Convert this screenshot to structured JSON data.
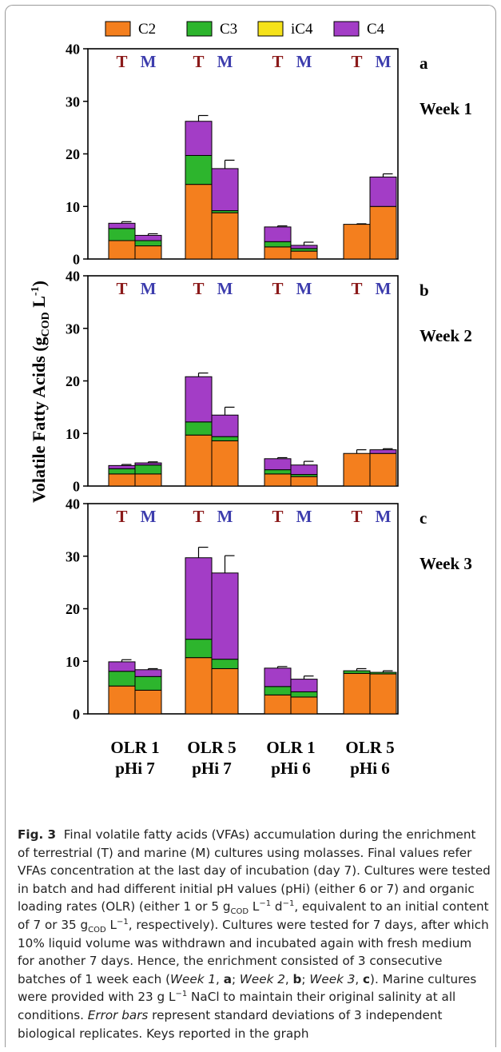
{
  "caption": {
    "label": "Fig. 3",
    "text_html": "Final volatile fatty acids (VFAs) accumulation during the enrichment of terrestrial (T) and marine (M) cultures using molasses. Final values refer VFAs concentration at the last day of incubation (day 7). Cultures were tested in batch and had different initial pH values (pHi) (either 6 or 7) and organic loading rates (OLR) (either 1 or 5 g<sub>COD</sub> L<sup>−1</sup> d<sup>−1</sup>, equivalent to an initial content of 7 or 35 g<sub>COD</sub> L<sup>−1</sup>, respectively). Cultures were tested for 7 days, after which 10% liquid volume was withdrawn and incubated again with fresh medium for another 7 days. Hence, the enrichment consisted of 3 consecutive batches of 1 week each (<i>Week 1</i>, <b>a</b>; <i>Week 2</i>, <b>b</b>; <i>Week 3</i>, <b>c</b>). Marine cultures were provided with 23 g L<sup>−1</sup> NaCl to maintain their original salinity at all conditions. <i>Error bars</i> represent standard deviations of 3 independent biological replicates. Keys reported in the graph"
  },
  "chart_data": {
    "type": "bar",
    "stacked": true,
    "ylabel_main": "Volatile Fatty Acids (g",
    "ylabel_sub": "COD",
    "ylabel_tail": " L",
    "ylabel_sup": "-1",
    "ylabel_close": ")",
    "ylim": [
      0,
      40
    ],
    "yticks": [
      0,
      10,
      20,
      30,
      40
    ],
    "colors": {
      "C2": "#f47f1e",
      "C3": "#2db52d",
      "iC4": "#f5e21a",
      "C4": "#a33dc6",
      "T": "#8b1a1a",
      "M": "#3d3dad"
    },
    "legend": [
      "C2",
      "C3",
      "iC4",
      "C4"
    ],
    "categories": [
      "OLR 1\npHi 7",
      "OLR 5\npHi 7",
      "OLR 1\npHi 6",
      "OLR 5\npHi 6"
    ],
    "culture_labels": [
      "T",
      "M"
    ],
    "panels": [
      {
        "letter": "a",
        "week": "Week 1",
        "bars": [
          {
            "cat": 0,
            "culture": "T",
            "C2": 3.5,
            "C3": 2.3,
            "iC4": 0.0,
            "C4": 1.0,
            "err": {
              "C2": 0.2,
              "C3": 0.3,
              "C4": 0.3
            }
          },
          {
            "cat": 0,
            "culture": "M",
            "C2": 2.5,
            "C3": 1.0,
            "iC4": 0.0,
            "C4": 1.0,
            "err": {
              "C2": 0.0,
              "C3": 0.4,
              "C4": 0.3
            }
          },
          {
            "cat": 1,
            "culture": "T",
            "C2": 14.2,
            "C3": 5.5,
            "iC4": 0.0,
            "C4": 6.5,
            "err": {
              "C2": 1.5,
              "C3": 1.0,
              "C4": 1.1
            }
          },
          {
            "cat": 1,
            "culture": "M",
            "C2": 8.8,
            "C3": 0.4,
            "iC4": 0.0,
            "C4": 8.0,
            "err": {
              "C2": 0.3,
              "C3": 0.4,
              "C4": 1.6
            }
          },
          {
            "cat": 2,
            "culture": "T",
            "C2": 2.3,
            "C3": 1.0,
            "iC4": 0.0,
            "C4": 2.8,
            "err": {
              "C2": 0.3,
              "C3": 0.3,
              "C4": 0.2
            }
          },
          {
            "cat": 2,
            "culture": "M",
            "C2": 1.5,
            "C3": 0.5,
            "iC4": 0.0,
            "C4": 0.6,
            "err": {
              "C2": 0.3,
              "C3": 0.3,
              "C4": 0.6
            }
          },
          {
            "cat": 3,
            "culture": "T",
            "C2": 6.6,
            "C3": 0.0,
            "iC4": 0.0,
            "C4": 0.0,
            "err": {
              "C2": 0.1,
              "C3": 0,
              "C4": 0
            }
          },
          {
            "cat": 3,
            "culture": "M",
            "C2": 10.0,
            "C3": 0.0,
            "iC4": 0.0,
            "C4": 5.6,
            "err": {
              "C2": 0.7,
              "C3": 0,
              "C4": 0.6
            }
          }
        ]
      },
      {
        "letter": "b",
        "week": "Week 2",
        "bars": [
          {
            "cat": 0,
            "culture": "T",
            "C2": 2.3,
            "C3": 1.0,
            "iC4": 0.0,
            "C4": 0.6,
            "err": {
              "C2": 0.3,
              "C3": 0.3,
              "C4": 0.2
            }
          },
          {
            "cat": 0,
            "culture": "M",
            "C2": 2.3,
            "C3": 1.7,
            "iC4": 0.0,
            "C4": 0.4,
            "err": {
              "C2": 0.3,
              "C3": 0.2,
              "C4": 0.2
            }
          },
          {
            "cat": 1,
            "culture": "T",
            "C2": 9.7,
            "C3": 2.5,
            "iC4": 0.0,
            "C4": 8.6,
            "err": {
              "C2": 0.5,
              "C3": 0.3,
              "C4": 0.7
            }
          },
          {
            "cat": 1,
            "culture": "M",
            "C2": 8.6,
            "C3": 0.8,
            "iC4": 0.0,
            "C4": 4.1,
            "err": {
              "C2": 0.6,
              "C3": 0.5,
              "C4": 1.5
            }
          },
          {
            "cat": 2,
            "culture": "T",
            "C2": 2.3,
            "C3": 0.8,
            "iC4": 0.0,
            "C4": 2.1,
            "err": {
              "C2": 0.3,
              "C3": 0.4,
              "C4": 0.2
            }
          },
          {
            "cat": 2,
            "culture": "M",
            "C2": 1.8,
            "C3": 0.4,
            "iC4": 0.0,
            "C4": 1.8,
            "err": {
              "C2": 0.3,
              "C3": 0.2,
              "C4": 0.7
            }
          },
          {
            "cat": 3,
            "culture": "T",
            "C2": 6.2,
            "C3": 0.0,
            "iC4": 0.0,
            "C4": 0.0,
            "err": {
              "C2": 0.7,
              "C3": 0,
              "C4": 0
            }
          },
          {
            "cat": 3,
            "culture": "M",
            "C2": 6.2,
            "C3": 0.0,
            "iC4": 0.0,
            "C4": 0.7,
            "err": {
              "C2": 0.3,
              "C3": 0,
              "C4": 0.2
            }
          }
        ]
      },
      {
        "letter": "c",
        "week": "Week 3",
        "bars": [
          {
            "cat": 0,
            "culture": "T",
            "C2": 5.3,
            "C3": 2.8,
            "iC4": 0.0,
            "C4": 1.8,
            "err": {
              "C2": 1.5,
              "C3": 0.3,
              "C4": 0.4
            }
          },
          {
            "cat": 0,
            "culture": "M",
            "C2": 4.5,
            "C3": 2.6,
            "iC4": 0.0,
            "C4": 1.3,
            "err": {
              "C2": 0.5,
              "C3": 0.2,
              "C4": 0.2
            }
          },
          {
            "cat": 1,
            "culture": "T",
            "C2": 10.7,
            "C3": 3.5,
            "iC4": 0.0,
            "C4": 15.5,
            "err": {
              "C2": 1.8,
              "C3": 0.8,
              "C4": 2.0
            }
          },
          {
            "cat": 1,
            "culture": "M",
            "C2": 8.6,
            "C3": 1.8,
            "iC4": 0.0,
            "C4": 16.4,
            "err": {
              "C2": 1.2,
              "C3": 0.6,
              "C4": 3.3
            }
          },
          {
            "cat": 2,
            "culture": "T",
            "C2": 3.6,
            "C3": 1.6,
            "iC4": 0.0,
            "C4": 3.5,
            "err": {
              "C2": 0.6,
              "C3": 0.4,
              "C4": 0.3
            }
          },
          {
            "cat": 2,
            "culture": "M",
            "C2": 3.2,
            "C3": 1.0,
            "iC4": 0.0,
            "C4": 2.4,
            "err": {
              "C2": 0.8,
              "C3": 0.4,
              "C4": 0.6
            }
          },
          {
            "cat": 3,
            "culture": "T",
            "C2": 7.7,
            "C3": 0.5,
            "iC4": 0.0,
            "C4": 0.0,
            "err": {
              "C2": 0.5,
              "C3": 0.4,
              "C4": 0
            }
          },
          {
            "cat": 3,
            "culture": "M",
            "C2": 7.6,
            "C3": 0.3,
            "iC4": 0.0,
            "C4": 0.0,
            "err": {
              "C2": 0.3,
              "C3": 0.3,
              "C4": 0
            }
          }
        ]
      }
    ]
  }
}
